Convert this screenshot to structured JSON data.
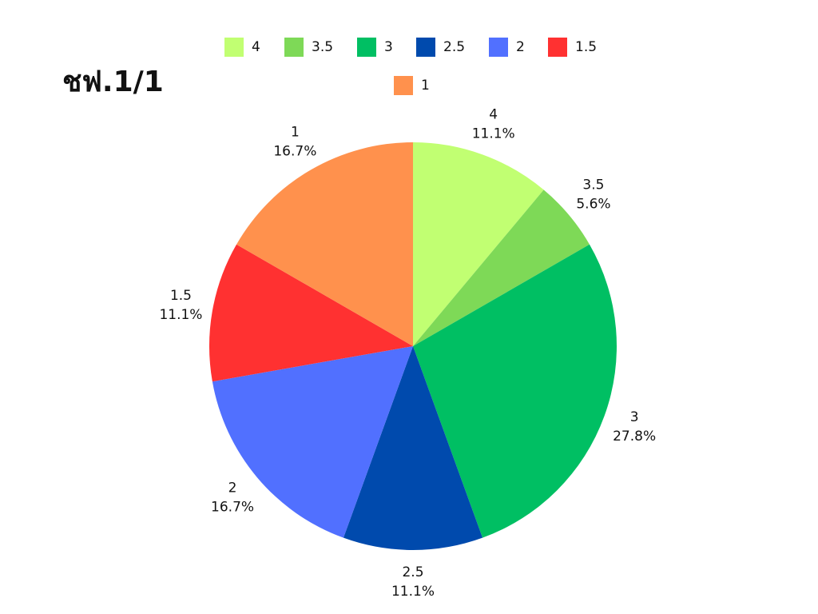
{
  "chart_data": {
    "type": "pie",
    "title": "ชฟ.1/1",
    "categories": [
      "4",
      "3.5",
      "3",
      "2.5",
      "2",
      "1.5",
      "1"
    ],
    "values": [
      11.1,
      5.6,
      27.8,
      11.1,
      16.7,
      11.1,
      16.7
    ],
    "value_labels": [
      "11.1%",
      "5.6%",
      "27.8%",
      "11.1%",
      "16.7%",
      "11.1%",
      "16.7%"
    ],
    "colors": [
      "#c1ff72",
      "#7ed957",
      "#00bf63",
      "#004aad",
      "#5170ff",
      "#ff3131",
      "#ff914d"
    ],
    "legend": "top"
  }
}
